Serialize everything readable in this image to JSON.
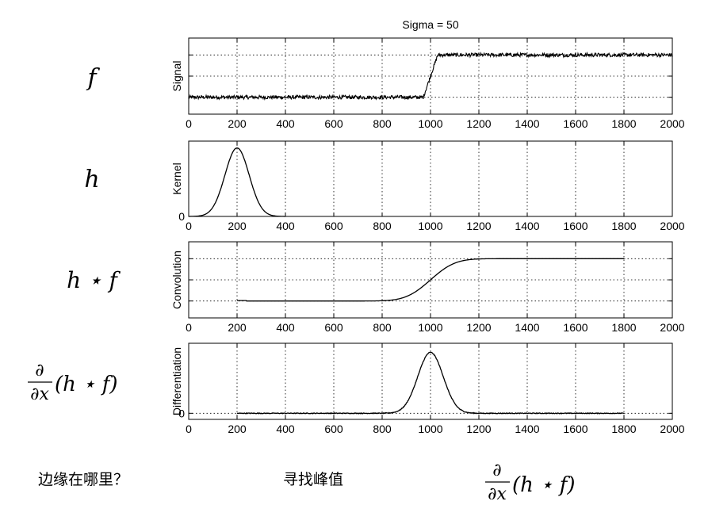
{
  "figure": {
    "title": "Sigma = 50"
  },
  "row_labels": {
    "signal": "f",
    "kernel": "h",
    "convolution": "h ⋆ f",
    "differentiation_prefix_num": "∂",
    "differentiation_prefix_den": "∂x",
    "differentiation_suffix": "(h ⋆ f)"
  },
  "captions": {
    "left": "边缘在哪里？",
    "middle": "寻找峰值",
    "right_num": "∂",
    "right_den": "∂x",
    "right_suffix": "(h ⋆ f)"
  },
  "chart_data": [
    {
      "type": "line",
      "ylabel": "Signal",
      "xlim": [
        0,
        2000
      ],
      "ylim": [
        -0.4,
        1.4
      ],
      "grid": true,
      "xticks": [
        0,
        200,
        400,
        600,
        800,
        1000,
        1200,
        1400,
        1600,
        1800,
        2000
      ],
      "yticks": [],
      "description_points": {
        "x": [
          0,
          970,
          1030,
          2000
        ],
        "y": [
          0,
          0,
          1,
          1
        ]
      },
      "noise": "small high-frequency noise on both levels"
    },
    {
      "type": "line",
      "ylabel": "Kernel",
      "xlim": [
        0,
        2000
      ],
      "ylim": [
        0,
        1.1
      ],
      "grid": true,
      "xticks": [
        0,
        200,
        400,
        600,
        800,
        1000,
        1200,
        1400,
        1600,
        1800,
        2000
      ],
      "yticks": [
        0
      ],
      "gaussian": {
        "center": 200,
        "sigma": 50,
        "peak": 1,
        "x_range": [
          0,
          400
        ]
      }
    },
    {
      "type": "line",
      "ylabel": "Convolution",
      "xlim": [
        0,
        2000
      ],
      "ylim": [
        -0.4,
        1.4
      ],
      "grid": true,
      "xticks": [
        0,
        200,
        400,
        600,
        800,
        1000,
        1200,
        1400,
        1600,
        1800,
        2000
      ],
      "yticks": [],
      "smooth_step": {
        "center": 1000,
        "sigma": 50,
        "low": 0,
        "high": 1,
        "x_range": [
          200,
          1800
        ]
      }
    },
    {
      "type": "line",
      "ylabel": "Differentiation",
      "xlim": [
        0,
        2000
      ],
      "ylim": [
        -0.1,
        1.15
      ],
      "grid": true,
      "xticks": [
        0,
        200,
        400,
        600,
        800,
        1000,
        1200,
        1400,
        1600,
        1800,
        2000
      ],
      "yticks": [
        0
      ],
      "gaussian": {
        "center": 1000,
        "sigma": 50,
        "peak": 1,
        "x_range": [
          200,
          1800
        ]
      }
    }
  ]
}
